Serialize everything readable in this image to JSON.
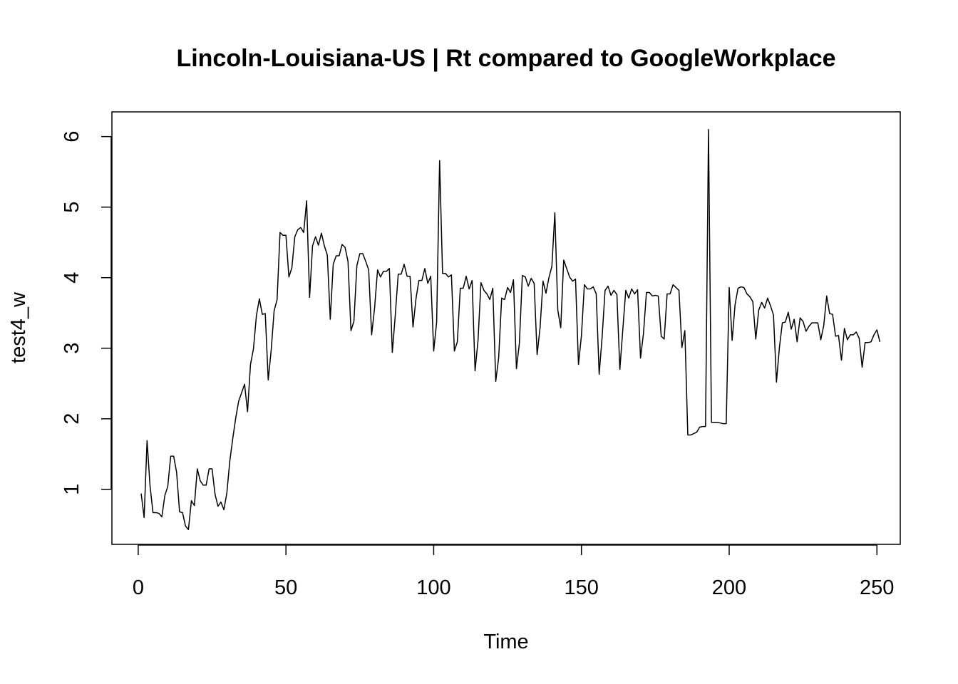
{
  "chart_data": {
    "type": "line",
    "title": "Lincoln-Louisiana-US | Rt compared to GoogleWorkplace",
    "xlabel": "Time",
    "ylabel": "test4_w",
    "xlim": [
      -8.9,
      257.9
    ],
    "ylim": [
      0.22,
      6.35
    ],
    "xticks": [
      0,
      50,
      100,
      150,
      200,
      250
    ],
    "yticks": [
      1,
      2,
      3,
      4,
      5,
      6
    ],
    "grid": false,
    "series": [
      {
        "color": "#000000",
        "x_start": 1,
        "values": [
          0.94,
          0.6,
          1.69,
          1.05,
          0.67,
          0.67,
          0.66,
          0.61,
          0.91,
          1.04,
          1.47,
          1.47,
          1.24,
          0.68,
          0.67,
          0.48,
          0.43,
          0.84,
          0.77,
          1.29,
          1.12,
          1.06,
          1.06,
          1.29,
          1.29,
          0.93,
          0.76,
          0.82,
          0.71,
          0.95,
          1.4,
          1.72,
          2.01,
          2.25,
          2.37,
          2.49,
          2.1,
          2.77,
          2.99,
          3.46,
          3.7,
          3.48,
          3.49,
          2.55,
          2.97,
          3.53,
          3.69,
          4.64,
          4.6,
          4.6,
          4.01,
          4.14,
          4.58,
          4.68,
          4.71,
          4.64,
          5.09,
          3.72,
          4.45,
          4.58,
          4.46,
          4.63,
          4.45,
          4.32,
          3.41,
          4.19,
          4.31,
          4.31,
          4.47,
          4.43,
          4.23,
          3.25,
          3.38,
          4.17,
          4.34,
          4.34,
          4.23,
          4.11,
          3.19,
          3.57,
          4.11,
          4.01,
          4.09,
          4.09,
          4.13,
          2.94,
          3.47,
          4.05,
          4.05,
          4.19,
          4.02,
          4.02,
          3.3,
          3.7,
          3.96,
          3.96,
          4.13,
          3.92,
          4.02,
          2.96,
          3.37,
          5.66,
          4.06,
          4.06,
          4.01,
          4.04,
          2.96,
          3.09,
          3.85,
          3.85,
          4.02,
          3.84,
          3.96,
          2.68,
          3.11,
          3.93,
          3.82,
          3.77,
          3.69,
          3.85,
          2.53,
          2.87,
          3.71,
          3.69,
          3.86,
          3.79,
          3.97,
          2.71,
          3.07,
          4.03,
          4.01,
          3.88,
          3.99,
          3.92,
          2.91,
          3.29,
          3.95,
          3.78,
          4.0,
          4.16,
          4.92,
          3.54,
          3.29,
          4.25,
          4.13,
          4.01,
          3.95,
          3.98,
          2.77,
          3.18,
          3.9,
          3.84,
          3.84,
          3.87,
          3.77,
          2.63,
          3.16,
          3.82,
          3.88,
          3.75,
          3.82,
          3.76,
          2.7,
          3.26,
          3.82,
          3.71,
          3.84,
          3.77,
          3.83,
          2.86,
          3.21,
          3.79,
          3.79,
          3.74,
          3.75,
          3.74,
          3.17,
          3.13,
          3.77,
          3.77,
          3.9,
          3.86,
          3.82,
          3.01,
          3.25,
          1.77,
          1.77,
          1.79,
          1.81,
          1.88,
          1.89,
          1.89,
          6.1,
          1.95,
          1.95,
          1.95,
          1.94,
          1.93,
          1.93,
          3.86,
          3.11,
          3.62,
          3.85,
          3.87,
          3.86,
          3.77,
          3.73,
          3.66,
          3.13,
          3.54,
          3.65,
          3.57,
          3.71,
          3.6,
          3.47,
          2.52,
          3.01,
          3.36,
          3.37,
          3.51,
          3.27,
          3.41,
          3.09,
          3.43,
          3.38,
          3.24,
          3.31,
          3.36,
          3.36,
          3.36,
          3.12,
          3.32,
          3.74,
          3.49,
          3.48,
          3.17,
          3.18,
          2.83,
          3.28,
          3.12,
          3.19,
          3.19,
          3.23,
          3.14,
          2.73,
          3.08,
          3.08,
          3.09,
          3.19,
          3.26,
          3.09
        ]
      }
    ]
  }
}
